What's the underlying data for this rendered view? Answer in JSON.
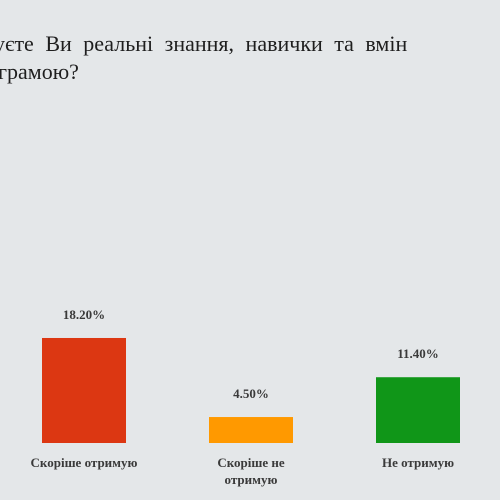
{
  "question": {
    "line1": "уєте Ви реальні знання, навички та вмін",
    "line2": "грамою?"
  },
  "chart_data": {
    "type": "bar",
    "categories": [
      [
        "Скоріше отримую"
      ],
      [
        "Скоріше не",
        "отримую"
      ],
      [
        "Не отримую"
      ]
    ],
    "values": [
      18.2,
      4.5,
      11.4
    ],
    "value_labels": [
      "18.20%",
      "4.50%",
      "11.40%"
    ],
    "colors": [
      "#dc3712",
      "#ff9900",
      "#109618"
    ],
    "ylim": [
      0,
      40
    ],
    "grid": false,
    "legend": "none"
  }
}
